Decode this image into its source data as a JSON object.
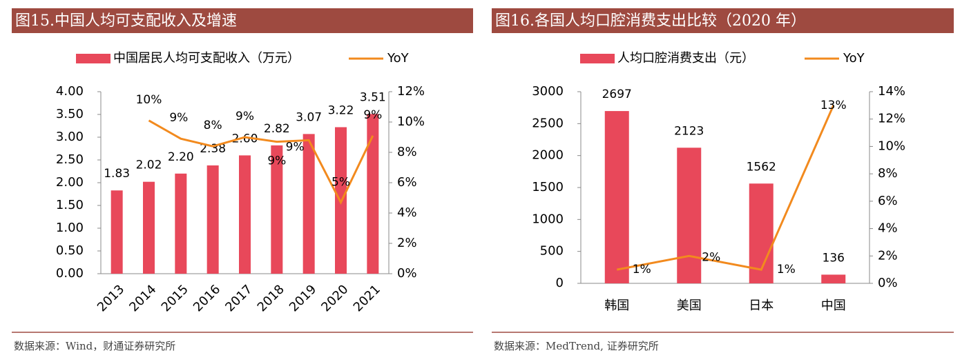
{
  "chart_data": [
    {
      "type": "combo",
      "title": "图15.中国人均可支配收入及增速",
      "source": "数据来源：Wind，财通证券研究所",
      "categories": [
        "2013",
        "2014",
        "2015",
        "2016",
        "2017",
        "2018",
        "2019",
        "2020",
        "2021"
      ],
      "series": [
        {
          "name": "中国居民人均可支配收入（万元）",
          "type": "bar",
          "color": "#e8485a",
          "values": [
            1.83,
            2.02,
            2.2,
            2.38,
            2.6,
            2.82,
            3.07,
            3.22,
            3.51
          ],
          "value_labels": [
            "1.83",
            "2.02",
            "2.20",
            "2.38",
            "2.60",
            "2.82",
            "3.07",
            "3.22",
            "3.51"
          ]
        },
        {
          "name": "YoY",
          "type": "line",
          "axis": "y2",
          "color": "#f28a1e",
          "values": [
            null,
            10.1,
            8.9,
            8.4,
            9.0,
            8.7,
            8.8,
            4.7,
            9.1
          ],
          "value_labels": [
            null,
            "10%",
            "9%",
            "8%",
            "9%",
            "9%",
            "9%",
            "5%",
            "9%"
          ]
        }
      ],
      "ylim": [
        0,
        4
      ],
      "yticks": [
        {
          "value": 0,
          "label": "0.00"
        },
        {
          "value": 0.5,
          "label": "0.50"
        },
        {
          "value": 1,
          "label": "1.00"
        },
        {
          "value": 1.5,
          "label": "1.50"
        },
        {
          "value": 2,
          "label": "2.00"
        },
        {
          "value": 2.5,
          "label": "2.50"
        },
        {
          "value": 3,
          "label": "3.00"
        },
        {
          "value": 3.5,
          "label": "3.50"
        },
        {
          "value": 4,
          "label": "4.00"
        }
      ],
      "y2lim": [
        0,
        12
      ],
      "y2ticks": [
        {
          "value": 0,
          "label": "0%"
        },
        {
          "value": 2,
          "label": "2%"
        },
        {
          "value": 4,
          "label": "4%"
        },
        {
          "value": 6,
          "label": "6%"
        },
        {
          "value": 8,
          "label": "8%"
        },
        {
          "value": 10,
          "label": "10%"
        },
        {
          "value": 12,
          "label": "12%"
        }
      ],
      "legend": "top"
    },
    {
      "type": "combo",
      "title": "图16.各国人均口腔消费支出比较（2020 年）",
      "source": "数据来源：MedTrend, 证券研究所",
      "categories": [
        "韩国",
        "美国",
        "日本",
        "中国"
      ],
      "series": [
        {
          "name": "人均口腔消费支出（元）",
          "type": "bar",
          "color": "#e8485a",
          "values": [
            2697,
            2123,
            1562,
            136
          ]
        },
        {
          "name": "YoY",
          "type": "line",
          "axis": "y2",
          "color": "#f28a1e",
          "values": [
            1,
            2,
            1,
            13
          ],
          "value_labels": [
            "1%",
            "2%",
            "1%",
            "13%"
          ]
        }
      ],
      "ylim": [
        0,
        3000
      ],
      "yticks": [
        0,
        500,
        1000,
        1500,
        2000,
        2500,
        3000
      ],
      "y2lim": [
        0,
        14
      ],
      "y2ticks": [
        {
          "value": 0,
          "label": "0%"
        },
        {
          "value": 2,
          "label": "2%"
        },
        {
          "value": 4,
          "label": "4%"
        },
        {
          "value": 6,
          "label": "6%"
        },
        {
          "value": 8,
          "label": "8%"
        },
        {
          "value": 10,
          "label": "10%"
        },
        {
          "value": 12,
          "label": "12%"
        },
        {
          "value": 14,
          "label": "14%"
        }
      ],
      "legend": "top"
    }
  ]
}
